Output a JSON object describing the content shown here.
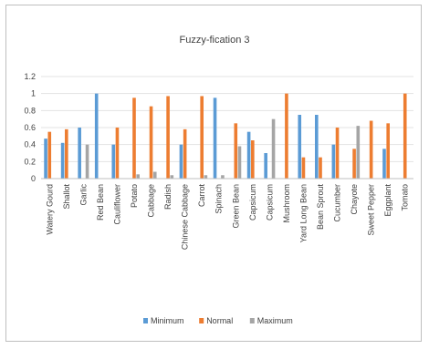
{
  "chart_data": {
    "type": "bar",
    "title": "Fuzzy-fication 3",
    "xlabel": "",
    "ylabel": "",
    "ylim": [
      0,
      1.2
    ],
    "yticks": [
      "0",
      "0.2",
      "0.4",
      "0.6",
      "0.8",
      "1",
      "1.2"
    ],
    "grid": true,
    "legend_position": "bottom",
    "categories": [
      "Watery Gourd",
      "Shallot",
      "Garlic",
      "Red Bean",
      "Cauliflower",
      "Potato",
      "Cabbage",
      "Radish",
      "Chinese Cabbage",
      "Carrot",
      "Spinach",
      "Green Bean",
      "Capsicum",
      "Capsicum",
      "Mushroom",
      "Yard Long Bean",
      "Bean Sprout",
      "Cucumber",
      "Chayote",
      "Sweet Pepper",
      "Eggplant",
      "Tomato"
    ],
    "series": [
      {
        "name": "Minimum",
        "color": "#5b9bd5",
        "values": [
          0.47,
          0.42,
          0.6,
          1.0,
          0.4,
          0.0,
          0.0,
          0.0,
          0.4,
          0.0,
          0.95,
          0.0,
          0.55,
          0.3,
          0.0,
          0.75,
          0.75,
          0.4,
          0.0,
          0.0,
          0.35,
          0.0
        ]
      },
      {
        "name": "Normal",
        "color": "#ed7d31",
        "values": [
          0.55,
          0.58,
          0.0,
          0.0,
          0.6,
          0.95,
          0.85,
          0.97,
          0.58,
          0.97,
          0.0,
          0.65,
          0.45,
          0.0,
          1.0,
          0.25,
          0.25,
          0.6,
          0.35,
          0.68,
          0.65,
          1.0
        ]
      },
      {
        "name": "Maximum",
        "color": "#a5a5a5",
        "values": [
          0.0,
          0.0,
          0.4,
          0.0,
          0.0,
          0.05,
          0.08,
          0.04,
          0.0,
          0.04,
          0.04,
          0.38,
          0.0,
          0.7,
          0.0,
          0.0,
          0.0,
          0.0,
          0.62,
          0.0,
          0.0,
          0.0
        ]
      }
    ]
  }
}
